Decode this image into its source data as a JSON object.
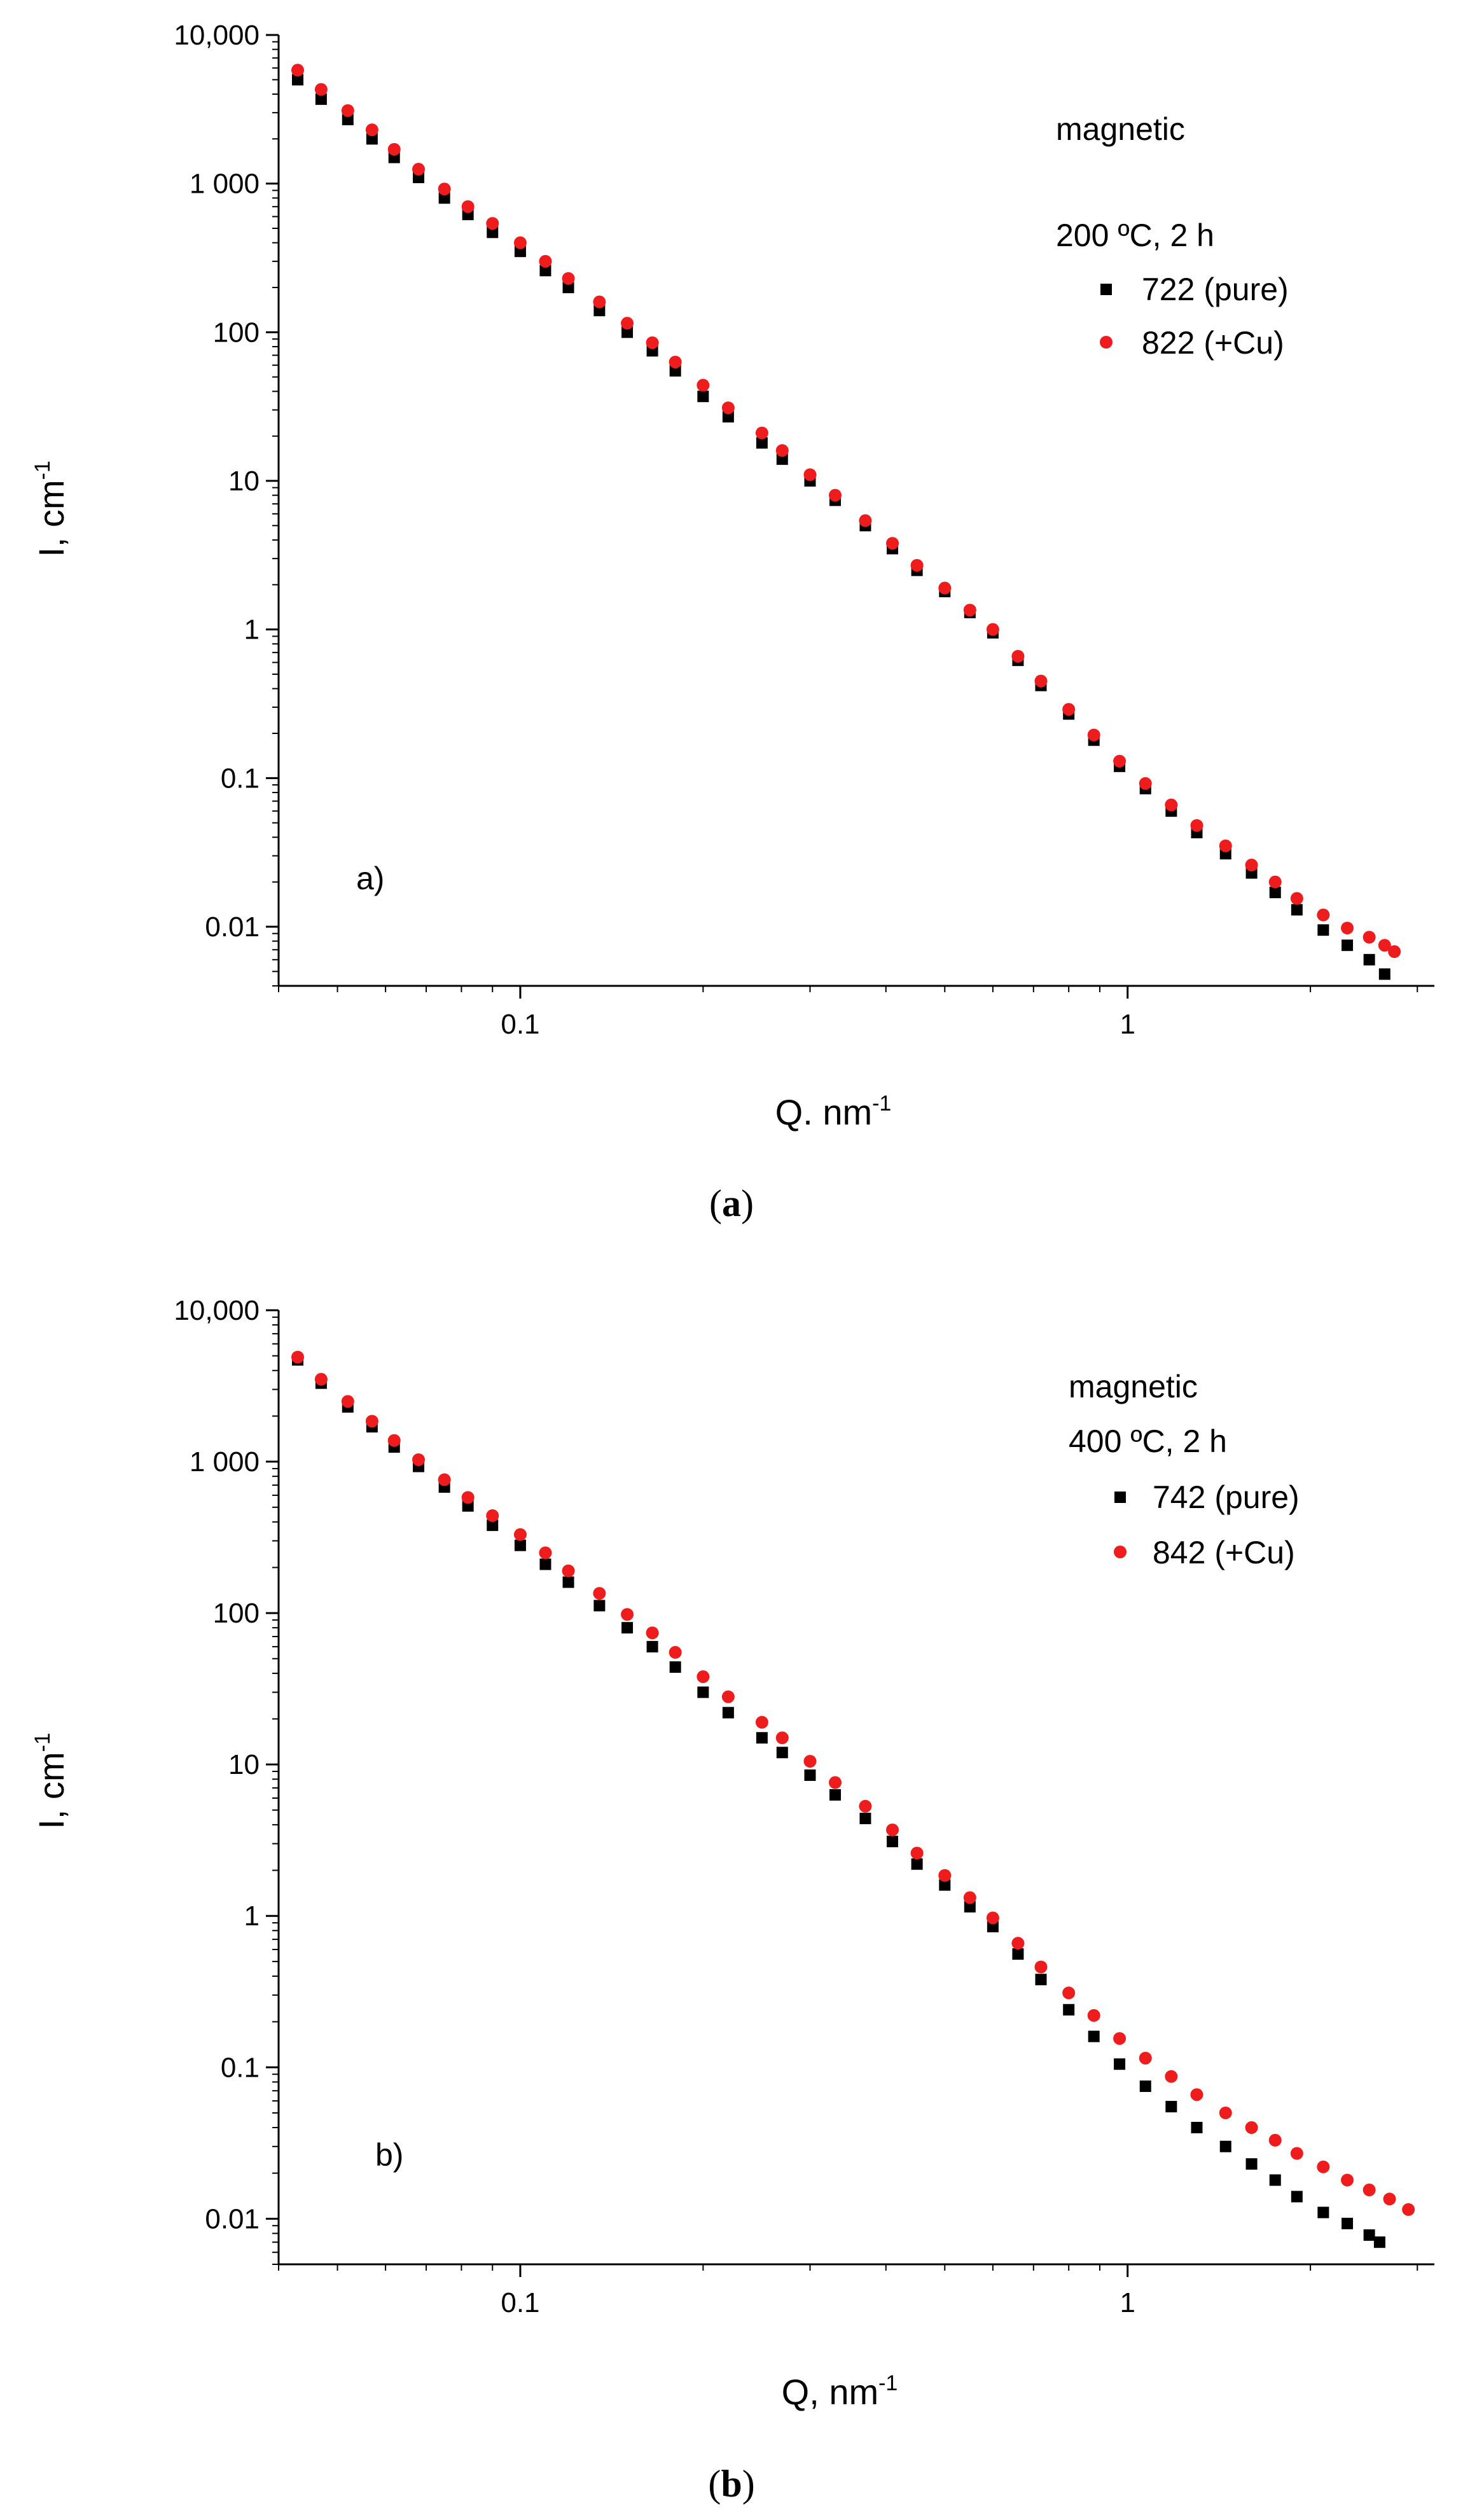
{
  "chart_data": [
    {
      "type": "scatter",
      "panel_label": "a)",
      "caption_open": "(",
      "caption_letter": "a",
      "caption_close": ")",
      "xlabel": "Q. nm",
      "xlabel_sup": "-1",
      "ylabel": "I, cm",
      "ylabel_sup": "-1",
      "xscale": "log",
      "yscale": "log",
      "xlim": [
        0.04,
        3.2
      ],
      "ylim": [
        0.004,
        10000
      ],
      "xticks": [
        {
          "value": 0.1,
          "label": "0.1"
        },
        {
          "value": 1,
          "label": "1"
        }
      ],
      "yticks": [
        {
          "value": 10000,
          "label": "10,000"
        },
        {
          "value": 1000,
          "label": "1 000"
        },
        {
          "value": 100,
          "label": "100"
        },
        {
          "value": 10,
          "label": "10"
        },
        {
          "value": 1,
          "label": "1"
        },
        {
          "value": 0.1,
          "label": "0.1"
        },
        {
          "value": 0.01,
          "label": "0.01"
        }
      ],
      "legend_title_line1": "magnetic",
      "legend_title_line2": "200 ºC, 2 h",
      "legend_placement": "top-right",
      "grid": false,
      "series": [
        {
          "name": "722 (pure)",
          "color": "#000000",
          "marker": "square",
          "x": [
            0.043,
            0.047,
            0.052,
            0.057,
            0.062,
            0.068,
            0.075,
            0.082,
            0.09,
            0.1,
            0.11,
            0.12,
            0.135,
            0.15,
            0.165,
            0.18,
            0.2,
            0.22,
            0.25,
            0.27,
            0.3,
            0.33,
            0.37,
            0.41,
            0.45,
            0.5,
            0.55,
            0.6,
            0.66,
            0.72,
            0.8,
            0.88,
            0.97,
            1.07,
            1.18,
            1.3,
            1.45,
            1.6,
            1.75,
            1.9,
            2.1,
            2.3,
            2.5,
            2.65
          ],
          "y": [
            5000,
            3700,
            2700,
            2000,
            1500,
            1100,
            800,
            620,
            470,
            350,
            260,
            200,
            140,
            100,
            75,
            55,
            37,
            27,
            18,
            14,
            10,
            7.4,
            5.0,
            3.5,
            2.5,
            1.8,
            1.3,
            0.95,
            0.62,
            0.42,
            0.27,
            0.18,
            0.12,
            0.085,
            0.06,
            0.043,
            0.031,
            0.023,
            0.017,
            0.013,
            0.0095,
            0.0075,
            0.006,
            0.0048
          ]
        },
        {
          "name": "822 (+Cu)",
          "color": "#ee1c1c",
          "marker": "circle",
          "x": [
            0.043,
            0.047,
            0.052,
            0.057,
            0.062,
            0.068,
            0.075,
            0.082,
            0.09,
            0.1,
            0.11,
            0.12,
            0.135,
            0.15,
            0.165,
            0.18,
            0.2,
            0.22,
            0.25,
            0.27,
            0.3,
            0.33,
            0.37,
            0.41,
            0.45,
            0.5,
            0.55,
            0.6,
            0.66,
            0.72,
            0.8,
            0.88,
            0.97,
            1.07,
            1.18,
            1.3,
            1.45,
            1.6,
            1.75,
            1.9,
            2.1,
            2.3,
            2.5,
            2.65,
            2.75
          ],
          "y": [
            5800,
            4300,
            3100,
            2300,
            1700,
            1250,
            920,
            700,
            540,
            400,
            300,
            230,
            160,
            115,
            85,
            63,
            44,
            31,
            21,
            16,
            11,
            8.0,
            5.4,
            3.8,
            2.7,
            1.9,
            1.35,
            1.0,
            0.66,
            0.45,
            0.29,
            0.195,
            0.13,
            0.092,
            0.066,
            0.048,
            0.035,
            0.026,
            0.02,
            0.0155,
            0.012,
            0.0098,
            0.0085,
            0.0075,
            0.0068
          ]
        }
      ]
    },
    {
      "type": "scatter",
      "panel_label": "b)",
      "caption_open": "(",
      "caption_letter": "b",
      "caption_close": ")",
      "xlabel": "Q, nm",
      "xlabel_sup": "-1",
      "ylabel": "I, cm",
      "ylabel_sup": "-1",
      "xscale": "log",
      "yscale": "log",
      "xlim": [
        0.04,
        3.2
      ],
      "ylim": [
        0.005,
        10000
      ],
      "xticks": [
        {
          "value": 0.1,
          "label": "0.1"
        },
        {
          "value": 1,
          "label": "1"
        }
      ],
      "yticks": [
        {
          "value": 10000,
          "label": "10,000"
        },
        {
          "value": 1000,
          "label": "1 000"
        },
        {
          "value": 100,
          "label": "100"
        },
        {
          "value": 10,
          "label": "10"
        },
        {
          "value": 1,
          "label": "1"
        },
        {
          "value": 0.1,
          "label": "0.1"
        },
        {
          "value": 0.01,
          "label": "0.01"
        }
      ],
      "legend_title_line1": "magnetic",
      "legend_title_line2": "400 ºC, 2 h",
      "legend_placement": "top-right",
      "grid": false,
      "series": [
        {
          "name": "742 (pure)",
          "color": "#000000",
          "marker": "square",
          "x": [
            0.043,
            0.047,
            0.052,
            0.057,
            0.062,
            0.068,
            0.075,
            0.082,
            0.09,
            0.1,
            0.11,
            0.12,
            0.135,
            0.15,
            0.165,
            0.18,
            0.2,
            0.22,
            0.25,
            0.27,
            0.3,
            0.33,
            0.37,
            0.41,
            0.45,
            0.5,
            0.55,
            0.6,
            0.66,
            0.72,
            0.8,
            0.88,
            0.97,
            1.07,
            1.18,
            1.3,
            1.45,
            1.6,
            1.75,
            1.9,
            2.1,
            2.3,
            2.5,
            2.6
          ],
          "y": [
            4700,
            3300,
            2300,
            1700,
            1250,
            930,
            680,
            510,
            380,
            280,
            210,
            160,
            112,
            80,
            60,
            44,
            30,
            22,
            15,
            12,
            8.5,
            6.3,
            4.4,
            3.1,
            2.2,
            1.6,
            1.15,
            0.85,
            0.56,
            0.38,
            0.24,
            0.16,
            0.105,
            0.075,
            0.055,
            0.04,
            0.03,
            0.023,
            0.018,
            0.014,
            0.011,
            0.0093,
            0.0078,
            0.007
          ]
        },
        {
          "name": "842 (+Cu)",
          "color": "#ee1c1c",
          "marker": "circle",
          "x": [
            0.043,
            0.047,
            0.052,
            0.057,
            0.062,
            0.068,
            0.075,
            0.082,
            0.09,
            0.1,
            0.11,
            0.12,
            0.135,
            0.15,
            0.165,
            0.18,
            0.2,
            0.22,
            0.25,
            0.27,
            0.3,
            0.33,
            0.37,
            0.41,
            0.45,
            0.5,
            0.55,
            0.6,
            0.66,
            0.72,
            0.8,
            0.88,
            0.97,
            1.07,
            1.18,
            1.3,
            1.45,
            1.6,
            1.75,
            1.9,
            2.1,
            2.3,
            2.5,
            2.7,
            2.9
          ],
          "y": [
            4900,
            3500,
            2500,
            1850,
            1380,
            1030,
            760,
            580,
            440,
            330,
            250,
            190,
            135,
            98,
            74,
            55,
            38,
            28,
            19,
            15,
            10.5,
            7.6,
            5.3,
            3.7,
            2.6,
            1.85,
            1.32,
            0.97,
            0.66,
            0.46,
            0.31,
            0.22,
            0.155,
            0.115,
            0.087,
            0.066,
            0.05,
            0.04,
            0.033,
            0.027,
            0.022,
            0.018,
            0.0155,
            0.0135,
            0.0115
          ]
        }
      ]
    }
  ]
}
